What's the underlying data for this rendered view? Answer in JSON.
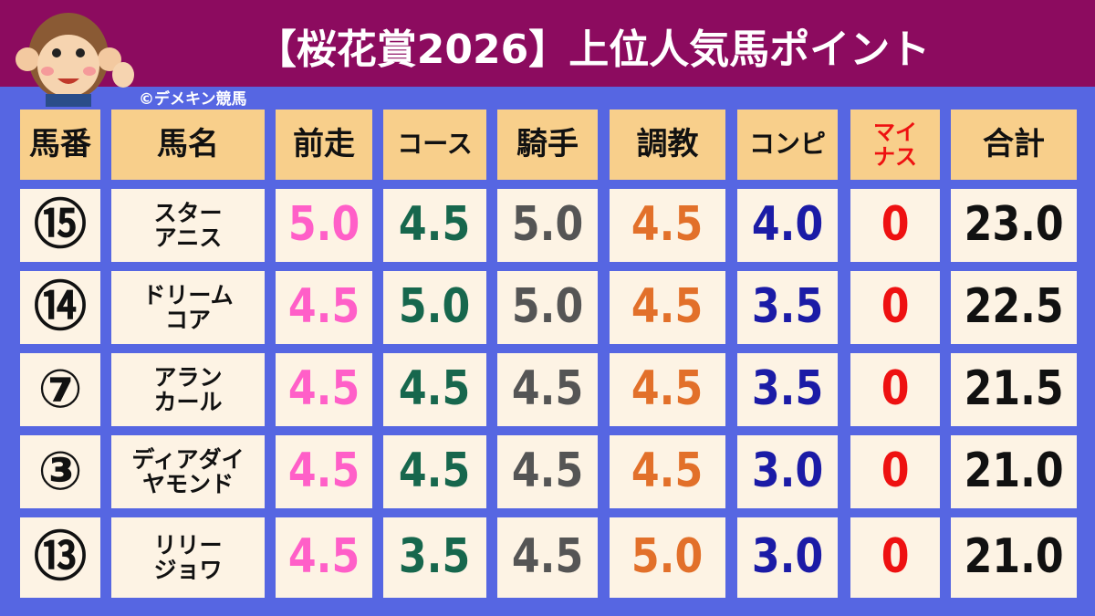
{
  "header": {
    "title": "【桜花賞2026】上位人気馬ポイント",
    "credit": "©デメキン競馬"
  },
  "table": {
    "columns": [
      {
        "label": [
          "馬番"
        ]
      },
      {
        "label": [
          "馬名"
        ]
      },
      {
        "label": [
          "前走"
        ],
        "color": "#ff5fc8"
      },
      {
        "label": [
          "コース"
        ],
        "color": "#17674d"
      },
      {
        "label": [
          "騎手"
        ],
        "color": "#555555"
      },
      {
        "label": [
          "調教"
        ],
        "color": "#e2702a"
      },
      {
        "label": [
          "コンピ"
        ],
        "color": "#1b1ba6"
      },
      {
        "label": [
          "マイ",
          "ナス"
        ],
        "color": "#ee1111"
      },
      {
        "label": [
          "合計"
        ],
        "color": "#111111"
      }
    ],
    "rows": [
      {
        "number": "⑮",
        "name": [
          "スター",
          "アニス"
        ],
        "scores": [
          "5.0",
          "4.5",
          "5.0",
          "4.5",
          "4.0",
          "0",
          "23.0"
        ]
      },
      {
        "number": "⑭",
        "name": [
          "ドリーム",
          "コア"
        ],
        "scores": [
          "4.5",
          "5.0",
          "5.0",
          "4.5",
          "3.5",
          "0",
          "22.5"
        ]
      },
      {
        "number": "⑦",
        "name": [
          "アラン",
          "カール"
        ],
        "scores": [
          "4.5",
          "4.5",
          "4.5",
          "4.5",
          "3.5",
          "0",
          "21.5"
        ]
      },
      {
        "number": "③",
        "name": [
          "ディアダイ",
          "ヤモンド"
        ],
        "scores": [
          "4.5",
          "4.5",
          "4.5",
          "4.5",
          "3.0",
          "0",
          "21.0"
        ]
      },
      {
        "number": "⑬",
        "name": [
          "リリー",
          "ジョワ"
        ],
        "scores": [
          "4.5",
          "3.5",
          "4.5",
          "5.0",
          "3.0",
          "0",
          "21.0"
        ]
      }
    ]
  }
}
